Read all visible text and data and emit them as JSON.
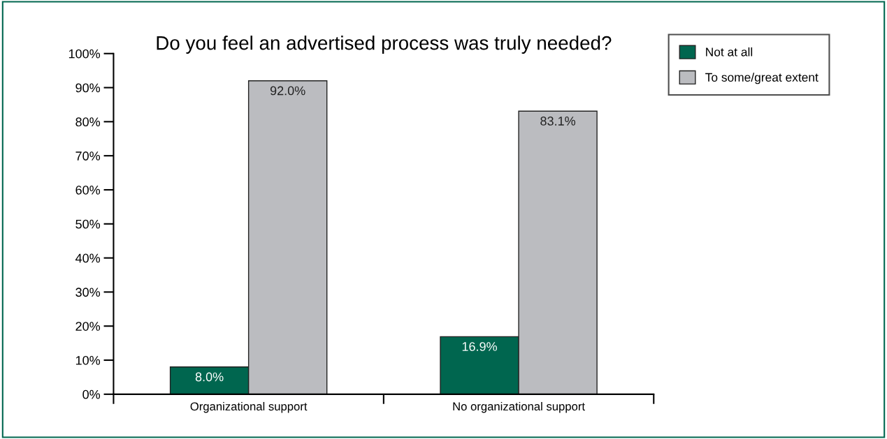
{
  "chart_data": {
    "type": "bar",
    "title": "Do you feel an advertised process was truly needed?",
    "categories": [
      "Organizational support",
      "No organizational support"
    ],
    "series": [
      {
        "name": "Not at all",
        "color": "#00664f",
        "values": [
          8.0,
          16.9
        ],
        "value_labels": [
          "8.0%",
          "16.9%"
        ]
      },
      {
        "name": "To some/great extent",
        "color": "#bbbcc0",
        "values": [
          92.0,
          83.1
        ],
        "value_labels": [
          "92.0%",
          "83.1%"
        ]
      }
    ],
    "ylim": [
      0,
      100
    ],
    "yticks": [
      {
        "value": 0,
        "label": "0%"
      },
      {
        "value": 10,
        "label": "10%"
      },
      {
        "value": 20,
        "label": "20%"
      },
      {
        "value": 30,
        "label": "30%"
      },
      {
        "value": 40,
        "label": "40%"
      },
      {
        "value": 50,
        "label": "50%"
      },
      {
        "value": 60,
        "label": "60%"
      },
      {
        "value": 70,
        "label": "70%"
      },
      {
        "value": 80,
        "label": "80%"
      },
      {
        "value": 90,
        "label": "90%"
      },
      {
        "value": 100,
        "label": "100%"
      }
    ],
    "legend": "top right",
    "grid": false
  }
}
